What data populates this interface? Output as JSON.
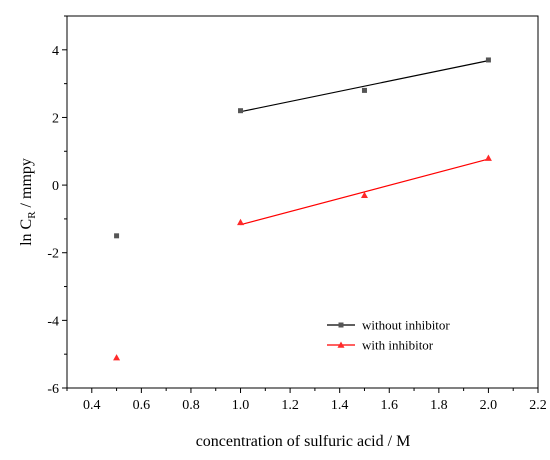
{
  "chart_data": {
    "type": "scatter",
    "xlabel": "concentration of sulfuric acid / M",
    "ylabel_main": "ln C",
    "ylabel_sub": "R",
    "ylabel_tail": " / mmpy",
    "xlim": [
      0.3,
      2.2
    ],
    "ylim": [
      -6,
      5
    ],
    "xticks": [
      "0.4",
      "0.6",
      "0.8",
      "1.0",
      "1.2",
      "1.4",
      "1.6",
      "1.8",
      "2.0",
      "2.2"
    ],
    "yticks": [
      "-6",
      "-4",
      "-2",
      "0",
      "2",
      "4"
    ],
    "legend_position": "bottom-right",
    "series": [
      {
        "name": "without inhibitor",
        "color": "#555555",
        "line_color": "#000000",
        "marker": "square",
        "points": [
          [
            0.5,
            -1.5
          ],
          [
            1.0,
            2.2
          ],
          [
            1.5,
            2.8
          ],
          [
            2.0,
            3.7
          ]
        ],
        "fit": [
          [
            1.0,
            2.17
          ],
          [
            2.0,
            3.68
          ]
        ]
      },
      {
        "name": "with inhibitor",
        "color": "#ff2a2a",
        "line_color": "#ff0000",
        "marker": "triangle",
        "points": [
          [
            0.5,
            -5.1
          ],
          [
            1.0,
            -1.1
          ],
          [
            1.5,
            -0.3
          ],
          [
            2.0,
            0.8
          ]
        ],
        "fit": [
          [
            1.0,
            -1.17
          ],
          [
            2.0,
            0.77
          ]
        ]
      }
    ]
  }
}
